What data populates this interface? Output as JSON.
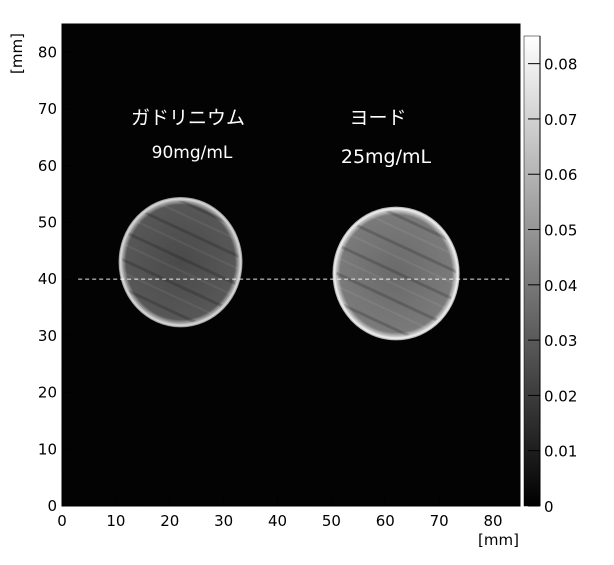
{
  "chart_data": {
    "type": "heatmap",
    "title": "",
    "xlabel": "[mm]",
    "ylabel": "[mm]",
    "xlim": [
      0,
      85
    ],
    "ylim": [
      0,
      85
    ],
    "x_ticks": [
      "0",
      "10",
      "20",
      "30",
      "40",
      "50",
      "60",
      "70",
      "80"
    ],
    "y_ticks": [
      "0",
      "10",
      "20",
      "30",
      "40",
      "50",
      "60",
      "70",
      "80"
    ],
    "colorbar": {
      "range": [
        0,
        0.085
      ],
      "ticks": [
        "0",
        "0.01",
        "0.02",
        "0.03",
        "0.04",
        "0.05",
        "0.06",
        "0.07",
        "0.08"
      ],
      "colormap": "grayscale"
    },
    "background_value": 0.002,
    "objects": [
      {
        "label": "ガドリニウム",
        "concentration": "90mg/mL",
        "center": [
          22,
          43
        ],
        "radius": 11.5,
        "interior_value": 0.031,
        "rim_value": 0.075
      },
      {
        "label": "ヨード",
        "concentration": "25mg/mL",
        "center": [
          62,
          41
        ],
        "radius": 11.8,
        "interior_value": 0.04,
        "rim_value": 0.082
      }
    ],
    "profile_line": {
      "y": 40,
      "x_range": [
        3,
        83
      ],
      "style": "dashed",
      "color": "#ffffff"
    }
  }
}
